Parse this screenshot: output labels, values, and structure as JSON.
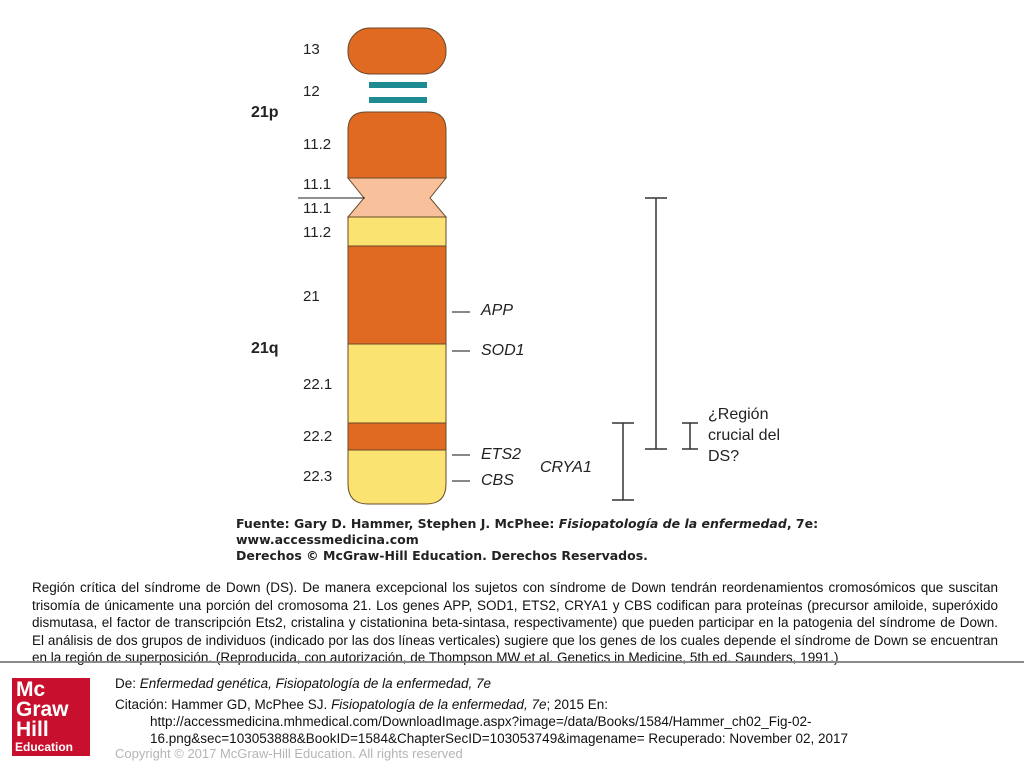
{
  "figure": {
    "arm_labels": {
      "p": "21p",
      "q": "21q"
    },
    "bands": [
      "13",
      "12",
      "11.2",
      "11.1",
      "11.1",
      "11.2",
      "21",
      "22.1",
      "22.2",
      "22.3"
    ],
    "genes": [
      "APP",
      "SOD1",
      "ETS2",
      "CBS",
      "CRYA1"
    ],
    "region_label": [
      "¿Región",
      "crucial del",
      "DS?"
    ],
    "colors": {
      "orange": "#e06a22",
      "yellow": "#fbe372",
      "peach": "#f9c19b",
      "teal": "#1e8a92",
      "outline": "#6a4a2a"
    },
    "source": {
      "line1_prefix": "Fuente: Gary D. Hammer, Stephen J. McPhee: ",
      "line1_title": "Fisiopatología de la enfermedad",
      "line1_suffix": ", 7e:",
      "line2": "www.accessmedicina.com",
      "line3": "Derechos © McGraw-Hill Education. Derechos Reservados."
    }
  },
  "caption": "Región crítica del síndrome de Down (DS). De manera excepcional los sujetos con síndrome de Down tendrán reordenamientos cromosómicos que suscitan trisomía de únicamente una porción del cromosoma 21. Los genes APP, SOD1, ETS2, CRYA1 y CBS codifican para proteínas (precursor amiloide, superóxido dismutasa, el factor de transcripción Ets2, cristalina y cistationina beta-sintasa, respectivamente) que pueden participar en la patogenia del síndrome de Down. El análisis de dos grupos de individuos (indicado por las dos líneas verticales) sugiere que los genes de los cuales depende el síndrome de Down se encuentran en la región de superposición. (Reproducida, con autorización, de Thompson MW et al. Genetics in Medicine, 5th ed. Saunders, 1991.)",
  "logo": {
    "line1": "Mc",
    "line2": "Graw",
    "line3": "Hill",
    "line4": "Education"
  },
  "footer": {
    "from_prefix": "De: ",
    "from_title": "Enfermedad genética, Fisiopatología de la enfermedad, 7e",
    "citation_prefix": "Citación: Hammer GD, McPhee SJ. ",
    "citation_title": "Fisiopatología de la enfermedad, 7e",
    "citation_suffix": "; 2015 En:",
    "url_line1": "http://accessmedicina.mhmedical.com/DownloadImage.aspx?image=/data/Books/1584/Hammer_ch02_Fig-02-",
    "url_line2": "16.png&sec=103053888&BookID=1584&ChapterSecID=103053749&imagename= Recuperado: November 02, 2017",
    "copyright": "Copyright © 2017 McGraw-Hill Education. All rights reserved"
  }
}
